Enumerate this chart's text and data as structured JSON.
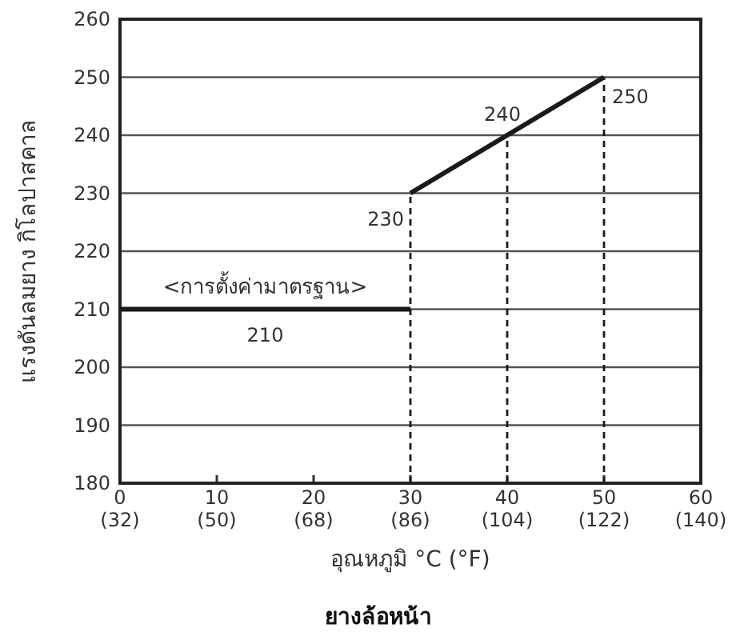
{
  "chart_data": {
    "type": "line",
    "title": "ยางล้อหน้า",
    "xlabel": "อุณหภูมิ °C (°F)",
    "ylabel": "แรงดันลมยาง กิโลปาสคาล",
    "series": [
      {
        "x": [
          0,
          30
        ],
        "values": [
          210,
          210
        ],
        "color": "#1a1a1a"
      },
      {
        "x": [
          30,
          40,
          50
        ],
        "values": [
          230,
          240,
          250
        ],
        "color": "#1a1a1a",
        "value_labels": [
          "230",
          "240",
          "250"
        ]
      }
    ],
    "annotations": [
      "<การตั้งค่ามาตรฐาน>",
      {
        "text": "210",
        "x": 15,
        "y": 210
      }
    ],
    "ref_lines": [
      {
        "axis": "x",
        "value": 30,
        "line_style": "dashed",
        "color": "#1a1a1a"
      },
      {
        "axis": "x",
        "value": 40,
        "line_style": "dashed",
        "color": "#1a1a1a"
      },
      {
        "axis": "x",
        "value": 50,
        "line_style": "dashed",
        "color": "#1a1a1a"
      }
    ],
    "xlim": [
      0,
      60
    ],
    "xticks": [
      0,
      10,
      20,
      30,
      40,
      50,
      60
    ],
    "x2lim": [
      32,
      140
    ],
    "x2ticks": [
      {
        "value": 32,
        "label": "(32)"
      },
      {
        "value": 50,
        "label": "(50)"
      },
      {
        "value": 68,
        "label": "(68)"
      },
      {
        "value": 86,
        "label": "(86)"
      },
      {
        "value": 104,
        "label": "(104)"
      },
      {
        "value": 122,
        "label": "(122)"
      },
      {
        "value": 140,
        "label": "(140)"
      }
    ],
    "ylim": [
      180,
      260
    ],
    "yticks": [
      180,
      190,
      200,
      210,
      220,
      230,
      240,
      250,
      260
    ],
    "grid": "y",
    "marker": "none",
    "line_style": "solid"
  }
}
